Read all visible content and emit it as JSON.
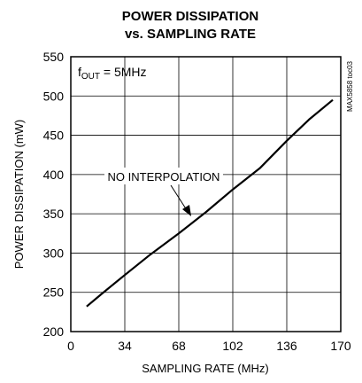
{
  "chart_data": {
    "type": "line",
    "title": "POWER DISSIPATION",
    "subtitle": "vs. SAMPLING RATE",
    "xlabel": "SAMPLING RATE (MHz)",
    "ylabel": "POWER DISSIPATION (mW)",
    "xlim": [
      0,
      170
    ],
    "ylim": [
      200,
      550
    ],
    "xticks": [
      "0",
      "34",
      "68",
      "102",
      "136",
      "170"
    ],
    "yticks": [
      "200",
      "250",
      "300",
      "350",
      "400",
      "450",
      "500",
      "550"
    ],
    "grid": true,
    "condition": {
      "prefix": "f",
      "subscript": "OUT",
      "suffix": " = 5MHz"
    },
    "annotation": "NO INTERPOLATION",
    "side_label": "MAX5858 toc03",
    "series": [
      {
        "x": [
          10,
          20,
          34,
          50,
          68,
          85,
          102,
          119,
          136,
          150,
          165
        ],
        "y": [
          232,
          249,
          272,
          298,
          325,
          352,
          381,
          408,
          443,
          470,
          495
        ]
      }
    ]
  }
}
